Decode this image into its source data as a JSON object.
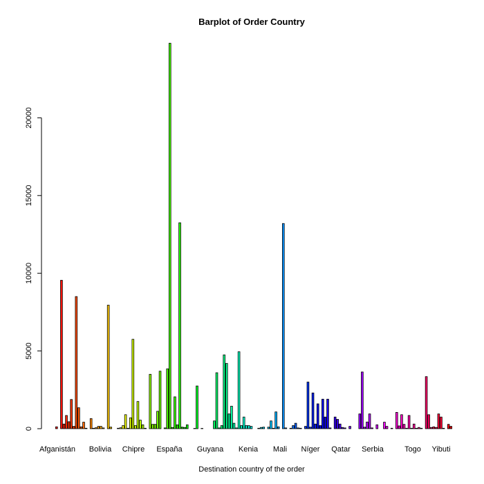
{
  "chart_data": {
    "type": "bar",
    "title": "Barplot of Order Country",
    "xlabel": "Destination country of the order",
    "ylabel": "",
    "ylim": [
      0,
      25000
    ],
    "yticks": [
      0,
      5000,
      10000,
      15000,
      20000
    ],
    "ytick_labels": [
      "0",
      "5000",
      "10000",
      "15000",
      "20000"
    ],
    "grid": false,
    "palette": "rainbow",
    "labeled_categories": [
      "Afganistán",
      "Bolivia",
      "Chipre",
      "España",
      "Guyana",
      "Kenia",
      "Mali",
      "Níger",
      "Qatar",
      "Serbia",
      "Togo",
      "Yibuti"
    ],
    "values": [
      120,
      0,
      9550,
      300,
      850,
      450,
      1880,
      150,
      8500,
      1350,
      120,
      420,
      30,
      0,
      650,
      30,
      60,
      150,
      150,
      50,
      0,
      7950,
      100,
      0,
      0,
      30,
      60,
      200,
      900,
      30,
      700,
      5750,
      200,
      1750,
      550,
      250,
      30,
      0,
      3500,
      280,
      280,
      1120,
      3700,
      0,
      50,
      3850,
      24800,
      80,
      2050,
      250,
      13250,
      100,
      80,
      250,
      0,
      0,
      20,
      2750,
      0,
      20,
      0,
      0,
      0,
      0,
      500,
      3600,
      50,
      200,
      4750,
      4200,
      950,
      1450,
      350,
      50,
      4950,
      200,
      750,
      200,
      200,
      150,
      0,
      0,
      30,
      80,
      100,
      0,
      100,
      500,
      30,
      1080,
      120,
      0,
      13200,
      50,
      0,
      30,
      200,
      350,
      50,
      30,
      0,
      150,
      3000,
      100,
      2300,
      300,
      1600,
      200,
      1900,
      750,
      1900,
      50,
      0,
      750,
      600,
      300,
      80,
      50,
      0,
      150,
      0,
      0,
      0,
      950,
      3650,
      100,
      430,
      950,
      50,
      0,
      250,
      0,
      0,
      420,
      150,
      0,
      30,
      0,
      1050,
      180,
      900,
      280,
      30,
      850,
      30,
      300,
      30,
      80,
      30,
      0,
      3350,
      900,
      80,
      120,
      80,
      950,
      750,
      30,
      0,
      280,
      150
    ]
  }
}
